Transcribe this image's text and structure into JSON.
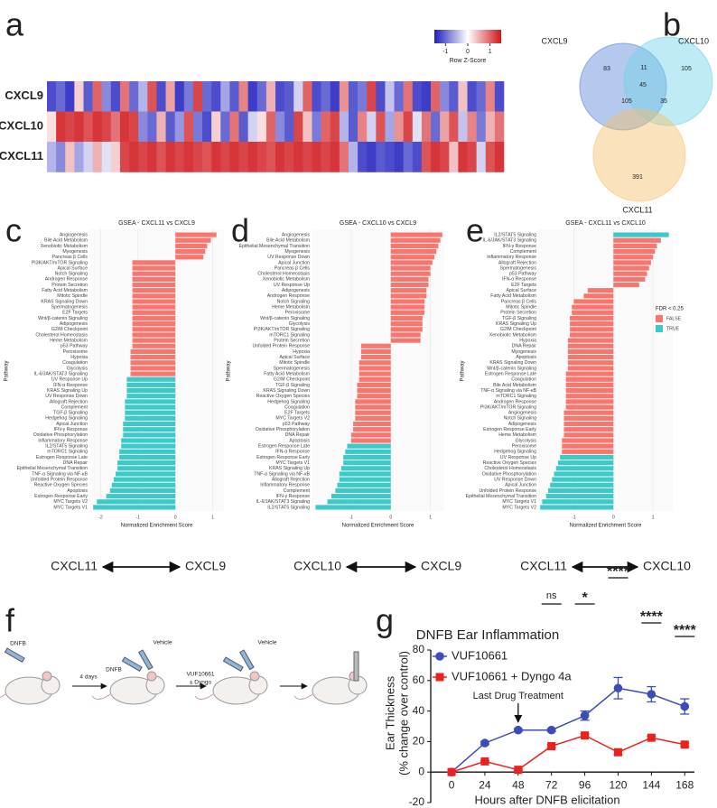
{
  "panel_labels": [
    "a",
    "b",
    "c",
    "d",
    "e",
    "f",
    "g"
  ],
  "schematic": {
    "labels": [
      "DNFB",
      "4 days",
      "DNFB",
      "Vehicle",
      "VUF10661",
      "± Dyngo",
      "Vehicle"
    ]
  },
  "chart_data": [
    {
      "type": "heatmap",
      "rows": [
        "CXCL9",
        "CXCL10",
        "CXCL11"
      ],
      "colorbar": {
        "label": "Row Z-Score",
        "ticks": [
          -1,
          0,
          1
        ]
      },
      "zlim": [
        -1.5,
        1.5
      ],
      "colors": [
        "#1f1fbf",
        "#ffffff",
        "#d0161a"
      ],
      "values": [
        [
          -1.2,
          -1,
          -1.3,
          0.3,
          -1.1,
          1,
          -0.8,
          -1.2,
          0.9,
          -1,
          -0.5,
          1.1,
          -1.2,
          0.6,
          -1.3,
          -0.9,
          1.2,
          -1,
          -1.2,
          -0.6,
          -1.1,
          0.8,
          -1.3,
          -1,
          0.5,
          -1.2,
          -1.1,
          -0.3,
          1,
          -1.2,
          -1,
          -1.3,
          0.7,
          -1.1,
          -0.9,
          1.2,
          -1.2,
          -0.4,
          -1,
          0.9,
          -1.2,
          -1.3,
          1,
          -0.8,
          -1.1,
          0.4,
          -1.2,
          -1,
          0.8,
          -1.2
        ],
        [
          0.2,
          1.3,
          1.2,
          1.3,
          1.1,
          1.3,
          1.2,
          0.9,
          1.3,
          1.2,
          -0.8,
          -1,
          0.5,
          -1.1,
          -0.7,
          1.1,
          -0.9,
          -1.2,
          0.3,
          -1,
          0.9,
          -1.1,
          -0.3,
          0.2,
          1,
          -0.8,
          -1.1,
          1.2,
          0.4,
          -0.9,
          1,
          1.2,
          -0.5,
          -1.1,
          0.8,
          -0.3,
          1.1,
          -0.6,
          0.7,
          1.2,
          -0.2,
          0.9,
          -1,
          0.6,
          1.1,
          -0.4,
          0.8,
          -0.9,
          0.5,
          0.9
        ],
        [
          -0.5,
          -0.8,
          0.4,
          -0.6,
          -0.3,
          0.5,
          -0.2,
          0.3,
          1.2,
          1.3,
          1.2,
          1.3,
          1.1,
          1.3,
          1.2,
          1.3,
          1.2,
          1.1,
          1.3,
          1.2,
          1.3,
          1.2,
          1.3,
          1.2,
          1.1,
          1.3,
          1.2,
          1.3,
          1.2,
          1.3,
          1.2,
          1.3,
          0.9,
          -0.5,
          -1.2,
          -1.3,
          -1.1,
          -1.2,
          -1.3,
          -1,
          -1.2,
          1.1,
          1.3,
          1.2,
          0.4,
          1.3,
          1.2,
          -0.3,
          1.1,
          1.3
        ]
      ]
    },
    {
      "type": "venn",
      "sets": [
        {
          "name": "CXCL9",
          "color": "#5b86d6"
        },
        {
          "name": "CXCL10",
          "color": "#6fd3e8"
        },
        {
          "name": "CXCL11",
          "color": "#f5c26b"
        }
      ],
      "values": [
        83,
        105,
        391,
        11,
        105,
        35,
        45
      ]
    },
    {
      "type": "barh",
      "title": "GSEA - CXCL11 vs CXCL9",
      "xlabel": "Normalized Enrichment Score",
      "ylabel": "Pathway",
      "direction": [
        "CXCL11",
        "CXCL9"
      ],
      "xlim": [
        -2.3,
        1.3
      ],
      "xticks": [
        -2,
        -1,
        0,
        1
      ],
      "categories": [
        "Angiogenesis",
        "Bile Acid Metabolism",
        "Xenobiotic Metabolism",
        "Myogenesis",
        "Pancreas β Cells",
        "PI3K/AKT/mTOR Signaling",
        "Apical Surface",
        "Notch Signaling",
        "Androgen Response",
        "Protein Secretion",
        "Fatty Acid Metabolism",
        "Mitotic Spindle",
        "KRAS Signaling Down",
        "Spermatogenesis",
        "E2F Targets",
        "Wnt/β-catenin Signaling",
        "Adipogenesis",
        "G2/M Checkpoint",
        "Cholesterol Homeostasis",
        "Heme Metabolism",
        "p53 Pathway",
        "Peroxisome",
        "Hypoxia",
        "Coagulation",
        "Glycolysis",
        "IL-6/JAK/STAT3 Signaling",
        "UV Response Up",
        "IFN-α Response",
        "KRAS Signaling Up",
        "UV Response Down",
        "Allograft Rejection",
        "Complement",
        "TGF-β Signaling",
        "Hedgehog Signaling",
        "Apical Junction",
        "IFN-γ Response",
        "Oxidative Phosphorylation",
        "Inflammatory Response",
        "IL2/STAT5 Signaling",
        "mTORC1 Signaling",
        "Estrogen Response Late",
        "DNA Repair",
        "Epithelial Mesenchymal Transition",
        "TNF-α Signaling via NF-κB",
        "Unfolded Protein Response",
        "Reactive Oxygen Species",
        "Apoptosis",
        "Estrogen Response Early",
        "MYC Targets V2",
        "MYC Targets V1"
      ],
      "values": [
        1.1,
        0.95,
        0.85,
        0.8,
        0.75,
        -1.15,
        -1.15,
        -1.15,
        -1.15,
        -1.15,
        -1.15,
        -1.15,
        -1.15,
        -1.15,
        -1.15,
        -1.15,
        -1.15,
        -1.15,
        -1.15,
        -1.15,
        -1.15,
        -1.2,
        -1.2,
        -1.2,
        -1.2,
        -1.2,
        -1.3,
        -1.3,
        -1.3,
        -1.3,
        -1.35,
        -1.35,
        -1.35,
        -1.35,
        -1.4,
        -1.4,
        -1.4,
        -1.45,
        -1.45,
        -1.5,
        -1.5,
        -1.55,
        -1.55,
        -1.6,
        -1.65,
        -1.7,
        -1.75,
        -1.85,
        -2.1,
        -2.2
      ],
      "colors": [
        "#f8766d",
        "#f8766d",
        "#f8766d",
        "#f8766d",
        "#f8766d",
        "#f8766d",
        "#f8766d",
        "#f8766d",
        "#f8766d",
        "#f8766d",
        "#f8766d",
        "#f8766d",
        "#f8766d",
        "#f8766d",
        "#f8766d",
        "#f8766d",
        "#f8766d",
        "#f8766d",
        "#f8766d",
        "#f8766d",
        "#f8766d",
        "#f8766d",
        "#f8766d",
        "#f8766d",
        "#f8766d",
        "#f8766d",
        "#3ec9c9",
        "#3ec9c9",
        "#3ec9c9",
        "#3ec9c9",
        "#3ec9c9",
        "#3ec9c9",
        "#3ec9c9",
        "#3ec9c9",
        "#3ec9c9",
        "#3ec9c9",
        "#3ec9c9",
        "#3ec9c9",
        "#3ec9c9",
        "#3ec9c9",
        "#3ec9c9",
        "#3ec9c9",
        "#3ec9c9",
        "#3ec9c9",
        "#3ec9c9",
        "#3ec9c9",
        "#3ec9c9",
        "#3ec9c9",
        "#3ec9c9",
        "#3ec9c9"
      ]
    },
    {
      "type": "barh",
      "title": "GSEA - CXCL10 vs CXCL9",
      "xlabel": "Normalized Enrichment Score",
      "ylabel": "Pathway",
      "direction": [
        "CXCL10",
        "CXCL9"
      ],
      "xlim": [
        -2,
        1.35
      ],
      "xticks": [
        -1,
        0,
        1
      ],
      "categories": [
        "Angiogenesis",
        "Bile Acid Metabolism",
        "Epithelial Mesenchymal Transition",
        "Myogenesis",
        "UV Response Down",
        "Apical Junction",
        "Pancreas β Cells",
        "Cholesterol Homeostasis",
        "Xenobiotic Metabolism",
        "UV Response Up",
        "Adipogenesis",
        "Androgen Response",
        "Notch Signaling",
        "Heme Metabolism",
        "Peroxisome",
        "Wnt/β-catenin Signaling",
        "Glycolysis",
        "PI3K/AKT/mTOR Signaling",
        "mTORC1 Signaling",
        "Protein Secretion",
        "Unfolded Protein Response",
        "Hypoxia",
        "Apical Surface",
        "Mitotic Spindle",
        "Spermatogenesis",
        "Fatty Acid Metabolism",
        "G2/M Checkpoint",
        "TGF-β Signaling",
        "KRAS Signaling Down",
        "Reactive Oxygen Species",
        "Hedgehog Signaling",
        "Coagulation",
        "E2F Targets",
        "MYC Targets V2",
        "p53 Pathway",
        "Oxidative Phosphorylation",
        "DNA Repair",
        "Apoptosis",
        "Estrogen Response Late",
        "IFN-α Response",
        "Estrogen Response Early",
        "MYC Targets V1",
        "KRAS Signaling Up",
        "TNF-α Signaling via NF-κB",
        "Allograft Rejection",
        "Inflammatory Response",
        "Complement",
        "IFN-γ Response",
        "IL-6/JAK/STAT3 Signaling",
        "IL2/STAT5 Signaling"
      ],
      "values": [
        1.3,
        1.25,
        1.2,
        1.15,
        1.1,
        1.05,
        1.0,
        1.0,
        0.95,
        0.95,
        0.9,
        0.9,
        0.85,
        0.85,
        0.85,
        0.8,
        0.8,
        0.8,
        0.75,
        0.75,
        -0.75,
        -0.75,
        -0.75,
        -0.8,
        -0.8,
        -0.8,
        -0.8,
        -0.85,
        -0.85,
        -0.85,
        -0.9,
        -0.9,
        -0.9,
        -0.9,
        -0.95,
        -0.95,
        -1.0,
        -1.0,
        -1.1,
        -1.15,
        -1.2,
        -1.2,
        -1.25,
        -1.3,
        -1.3,
        -1.35,
        -1.4,
        -1.5,
        -1.6,
        -1.9
      ],
      "colors": [
        "#f8766d",
        "#f8766d",
        "#f8766d",
        "#f8766d",
        "#f8766d",
        "#f8766d",
        "#f8766d",
        "#f8766d",
        "#f8766d",
        "#f8766d",
        "#f8766d",
        "#f8766d",
        "#f8766d",
        "#f8766d",
        "#f8766d",
        "#f8766d",
        "#f8766d",
        "#f8766d",
        "#f8766d",
        "#f8766d",
        "#f8766d",
        "#f8766d",
        "#f8766d",
        "#f8766d",
        "#f8766d",
        "#f8766d",
        "#f8766d",
        "#f8766d",
        "#f8766d",
        "#f8766d",
        "#f8766d",
        "#f8766d",
        "#f8766d",
        "#f8766d",
        "#f8766d",
        "#f8766d",
        "#f8766d",
        "#f8766d",
        "#3ec9c9",
        "#3ec9c9",
        "#3ec9c9",
        "#3ec9c9",
        "#3ec9c9",
        "#3ec9c9",
        "#3ec9c9",
        "#3ec9c9",
        "#3ec9c9",
        "#3ec9c9",
        "#3ec9c9",
        "#3ec9c9"
      ]
    },
    {
      "type": "barh",
      "title": "GSEA - CXCL11 vs CXCL10",
      "xlabel": "Normalized Enrichment Score",
      "ylabel": "Pathway",
      "direction": [
        "CXCL11",
        "CXCL10"
      ],
      "xlim": [
        -1.9,
        1.5
      ],
      "xticks": [
        -1,
        0,
        1
      ],
      "legend": {
        "title": "FDR < 0.25",
        "items": [
          {
            "label": "FALSE",
            "color": "#f8766d"
          },
          {
            "label": "TRUE",
            "color": "#3ec9c9"
          }
        ]
      },
      "categories": [
        "IL2/STAT5 Signaling",
        "IL-6/JAK/STAT3 Signaling",
        "IFN-γ Response",
        "Complement",
        "Inflammatory Response",
        "Allograft Rejection",
        "Spermatogenesis",
        "p53 Pathway",
        "IFN-α Response",
        "E2F Targets",
        "Apical Surface",
        "Fatty Acid Metabolism",
        "Pancreas β Cells",
        "Mitotic Spindle",
        "Protein Secretion",
        "TGF-β Signaling",
        "KRAS Signaling Up",
        "G2/M Checkpoint",
        "Xenobiotic Metabolism",
        "Hypoxia",
        "DNA Repair",
        "Myogenesis",
        "Apoptosis",
        "KRAS Signaling Down",
        "Wnt/β-catenin Signaling",
        "Estrogen Response Late",
        "Coagulation",
        "Bile Acid Metabolism",
        "TNF-α Signaling via NF-κB",
        "mTORC1 Signaling",
        "Androgen Response",
        "PI3K/AKT/mTOR Signaling",
        "Angiogenesis",
        "Notch Signaling",
        "Adipogenesis",
        "Estrogen Response Early",
        "Heme Metabolism",
        "Glycolysis",
        "Peroxisome",
        "Hedgehog Signaling",
        "UV Response Up",
        "Reactive Oxygen Species",
        "Cholesterol Homeostasis",
        "Oxidative Phosphorylation",
        "UV Response Down",
        "Apical Junction",
        "Unfolded Protein Response",
        "Epithelial Mesenchymal Transition",
        "MYC Targets V1",
        "MYC Targets V2"
      ],
      "values": [
        1.4,
        1.2,
        1.1,
        1.05,
        1.0,
        0.95,
        0.9,
        0.85,
        0.8,
        0.65,
        -0.65,
        -0.75,
        -1.0,
        -1.05,
        -1.05,
        -1.1,
        -1.1,
        -1.1,
        -1.1,
        -1.15,
        -1.15,
        -1.15,
        -1.15,
        -1.15,
        -1.15,
        -1.2,
        -1.2,
        -1.2,
        -1.2,
        -1.2,
        -1.2,
        -1.2,
        -1.25,
        -1.25,
        -1.25,
        -1.25,
        -1.25,
        -1.3,
        -1.3,
        -1.3,
        -1.35,
        -1.4,
        -1.45,
        -1.5,
        -1.55,
        -1.6,
        -1.65,
        -1.7,
        -1.8,
        -1.85
      ],
      "colors": [
        "#3ec9c9",
        "#f8766d",
        "#f8766d",
        "#f8766d",
        "#f8766d",
        "#f8766d",
        "#f8766d",
        "#f8766d",
        "#f8766d",
        "#f8766d",
        "#f8766d",
        "#f8766d",
        "#f8766d",
        "#f8766d",
        "#f8766d",
        "#f8766d",
        "#f8766d",
        "#f8766d",
        "#f8766d",
        "#f8766d",
        "#f8766d",
        "#f8766d",
        "#f8766d",
        "#f8766d",
        "#f8766d",
        "#f8766d",
        "#f8766d",
        "#f8766d",
        "#f8766d",
        "#f8766d",
        "#f8766d",
        "#f8766d",
        "#f8766d",
        "#f8766d",
        "#f8766d",
        "#f8766d",
        "#f8766d",
        "#f8766d",
        "#f8766d",
        "#f8766d",
        "#3ec9c9",
        "#3ec9c9",
        "#3ec9c9",
        "#3ec9c9",
        "#3ec9c9",
        "#3ec9c9",
        "#3ec9c9",
        "#3ec9c9",
        "#3ec9c9",
        "#3ec9c9"
      ]
    },
    {
      "type": "line",
      "title": "DNFB Ear Inflammation",
      "xlabel": "Hours after DNFB elicitation",
      "ylabel": [
        "Ear Thickness",
        "(% change over control)"
      ],
      "x": [
        0,
        24,
        48,
        72,
        96,
        120,
        144,
        168
      ],
      "xlim": [
        -15,
        175
      ],
      "xticks": [
        0,
        24,
        48,
        72,
        96,
        120,
        144,
        168
      ],
      "ylim": [
        -20,
        80
      ],
      "yticks": [
        -20,
        0,
        20,
        40,
        60,
        80
      ],
      "series": [
        {
          "name": "VUF10661",
          "color": "#3d4db7",
          "marker": "circle",
          "values": [
            0,
            19,
            27.5,
            27.5,
            37,
            55,
            51,
            43
          ],
          "errors": [
            0,
            1,
            1,
            1,
            3,
            7,
            5,
            5
          ]
        },
        {
          "name": "VUF10661 + Dyngo 4a",
          "color": "#e8231f",
          "marker": "square",
          "values": [
            0,
            7,
            1.5,
            17,
            24,
            13,
            22.5,
            18
          ],
          "errors": [
            0,
            0.5,
            0.5,
            1,
            1,
            1.5,
            1,
            1
          ]
        }
      ],
      "annotation": {
        "x": 48,
        "label": "Last Drug Treatment"
      },
      "significance": [
        {
          "x": 72,
          "label": "ns"
        },
        {
          "x": 96,
          "label": "*"
        },
        {
          "x": 120,
          "label": "****"
        },
        {
          "x": 144,
          "label": "****"
        },
        {
          "x": 168,
          "label": "****"
        }
      ]
    }
  ]
}
